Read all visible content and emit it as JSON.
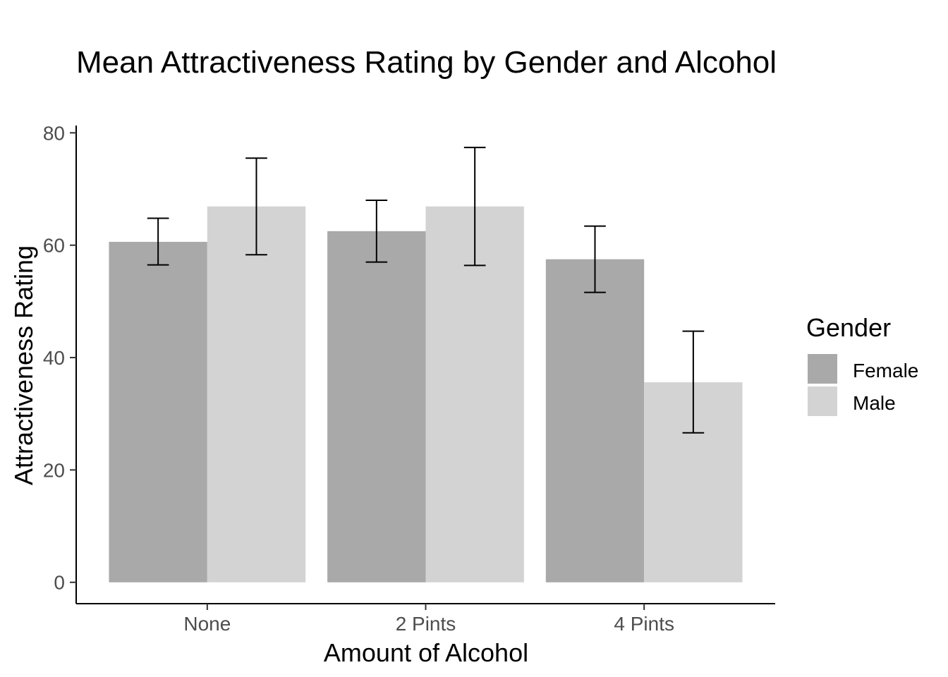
{
  "chart_data": {
    "type": "bar",
    "title": "Mean Attractiveness Rating by Gender and Alcohol",
    "xlabel": "Amount of Alcohol",
    "ylabel": "Attractiveness Rating",
    "categories": [
      "None",
      "2 Pints",
      "4 Pints"
    ],
    "ylim": [
      -3.8,
      81.3
    ],
    "yticks": [
      0,
      20,
      40,
      60,
      80
    ],
    "grid": false,
    "legend": {
      "title": "Gender",
      "position": "right"
    },
    "series": [
      {
        "name": "Female",
        "color": "#a9a9a9",
        "values": [
          60.6,
          62.5,
          57.5
        ],
        "error_low": [
          56.5,
          57.0,
          51.6
        ],
        "error_high": [
          64.8,
          68.0,
          63.4
        ]
      },
      {
        "name": "Male",
        "color": "#d3d3d3",
        "values": [
          66.9,
          66.9,
          35.6
        ],
        "error_low": [
          58.3,
          56.4,
          26.6
        ],
        "error_high": [
          75.5,
          77.4,
          44.7
        ]
      }
    ]
  }
}
